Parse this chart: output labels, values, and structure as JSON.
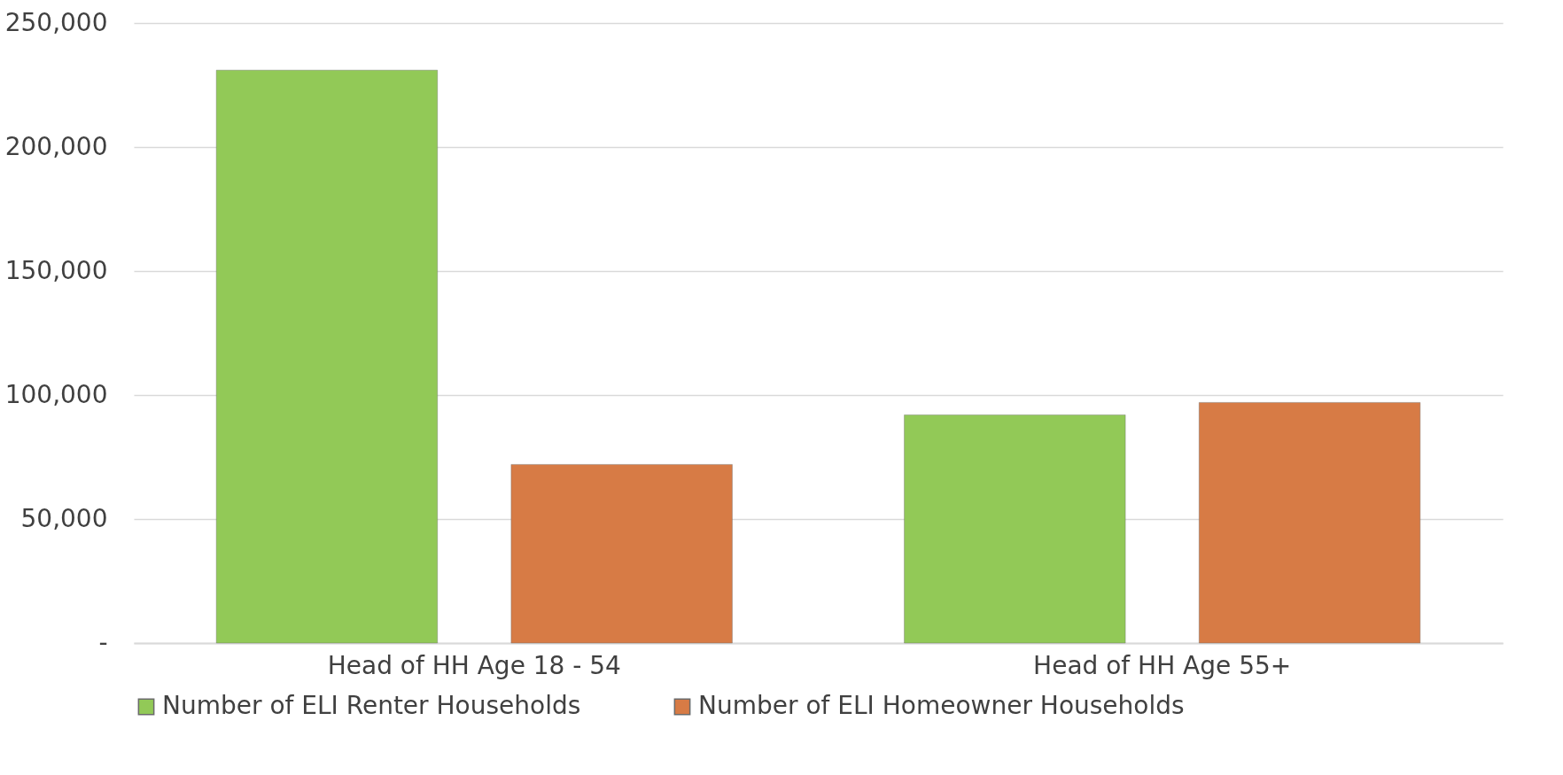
{
  "chart_data": {
    "type": "bar",
    "categories": [
      "Head of HH Age 18 - 54",
      "Head of HH Age 55+"
    ],
    "series": [
      {
        "name": "Number of ELI Renter Households",
        "color": "#92c957",
        "values": [
          231000,
          92000
        ]
      },
      {
        "name": "Number of ELI Homeowner Households",
        "color": "#d77b45",
        "values": [
          72000,
          97000
        ]
      }
    ],
    "ylim": [
      0,
      250000
    ],
    "yticks": [
      {
        "value": 0,
        "label": "-"
      },
      {
        "value": 50000,
        "label": "50,000"
      },
      {
        "value": 100000,
        "label": "100,000"
      },
      {
        "value": 150000,
        "label": "150,000"
      },
      {
        "value": 200000,
        "label": "200,000"
      },
      {
        "value": 250000,
        "label": "250,000"
      }
    ],
    "grid": "y",
    "legend": "bottom"
  }
}
